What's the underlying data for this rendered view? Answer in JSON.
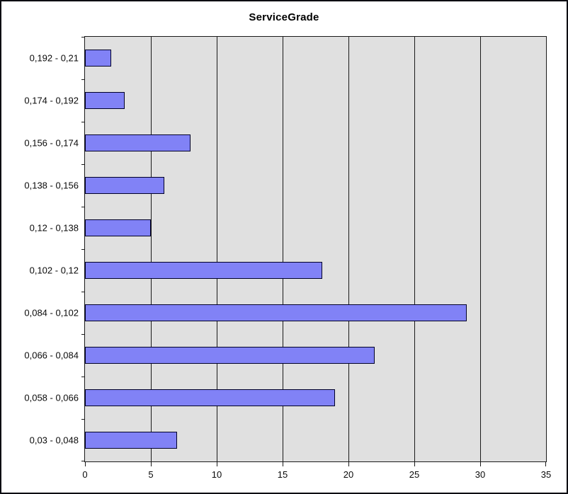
{
  "window": {
    "background": "#ffffff",
    "frame_border_color": "#0d0d12"
  },
  "chart_data": {
    "type": "bar",
    "orientation": "horizontal",
    "title": "ServiceGrade",
    "categories": [
      "0,192 - 0,21",
      "0,174 - 0,192",
      "0,156 - 0,174",
      "0,138 - 0,156",
      "0,12 - 0,138",
      "0,102 - 0,12",
      "0,084 - 0,102",
      "0,066 - 0,084",
      "0,058 - 0,066",
      "0,03 - 0,048"
    ],
    "values": [
      2,
      3,
      8,
      6,
      5,
      18,
      29,
      22,
      19,
      7
    ],
    "xlabel": "",
    "ylabel": "",
    "xlim": [
      0,
      35
    ],
    "x_ticks": [
      0,
      5,
      10,
      15,
      20,
      25,
      30,
      35
    ],
    "grid": true,
    "legend": null,
    "colors": {
      "bar_fill": "#8182f6",
      "bar_border": "#000028",
      "plot_background": "#e0e0e0",
      "grid_line": "#1a1a1a",
      "text": "#0a0a0a"
    }
  }
}
